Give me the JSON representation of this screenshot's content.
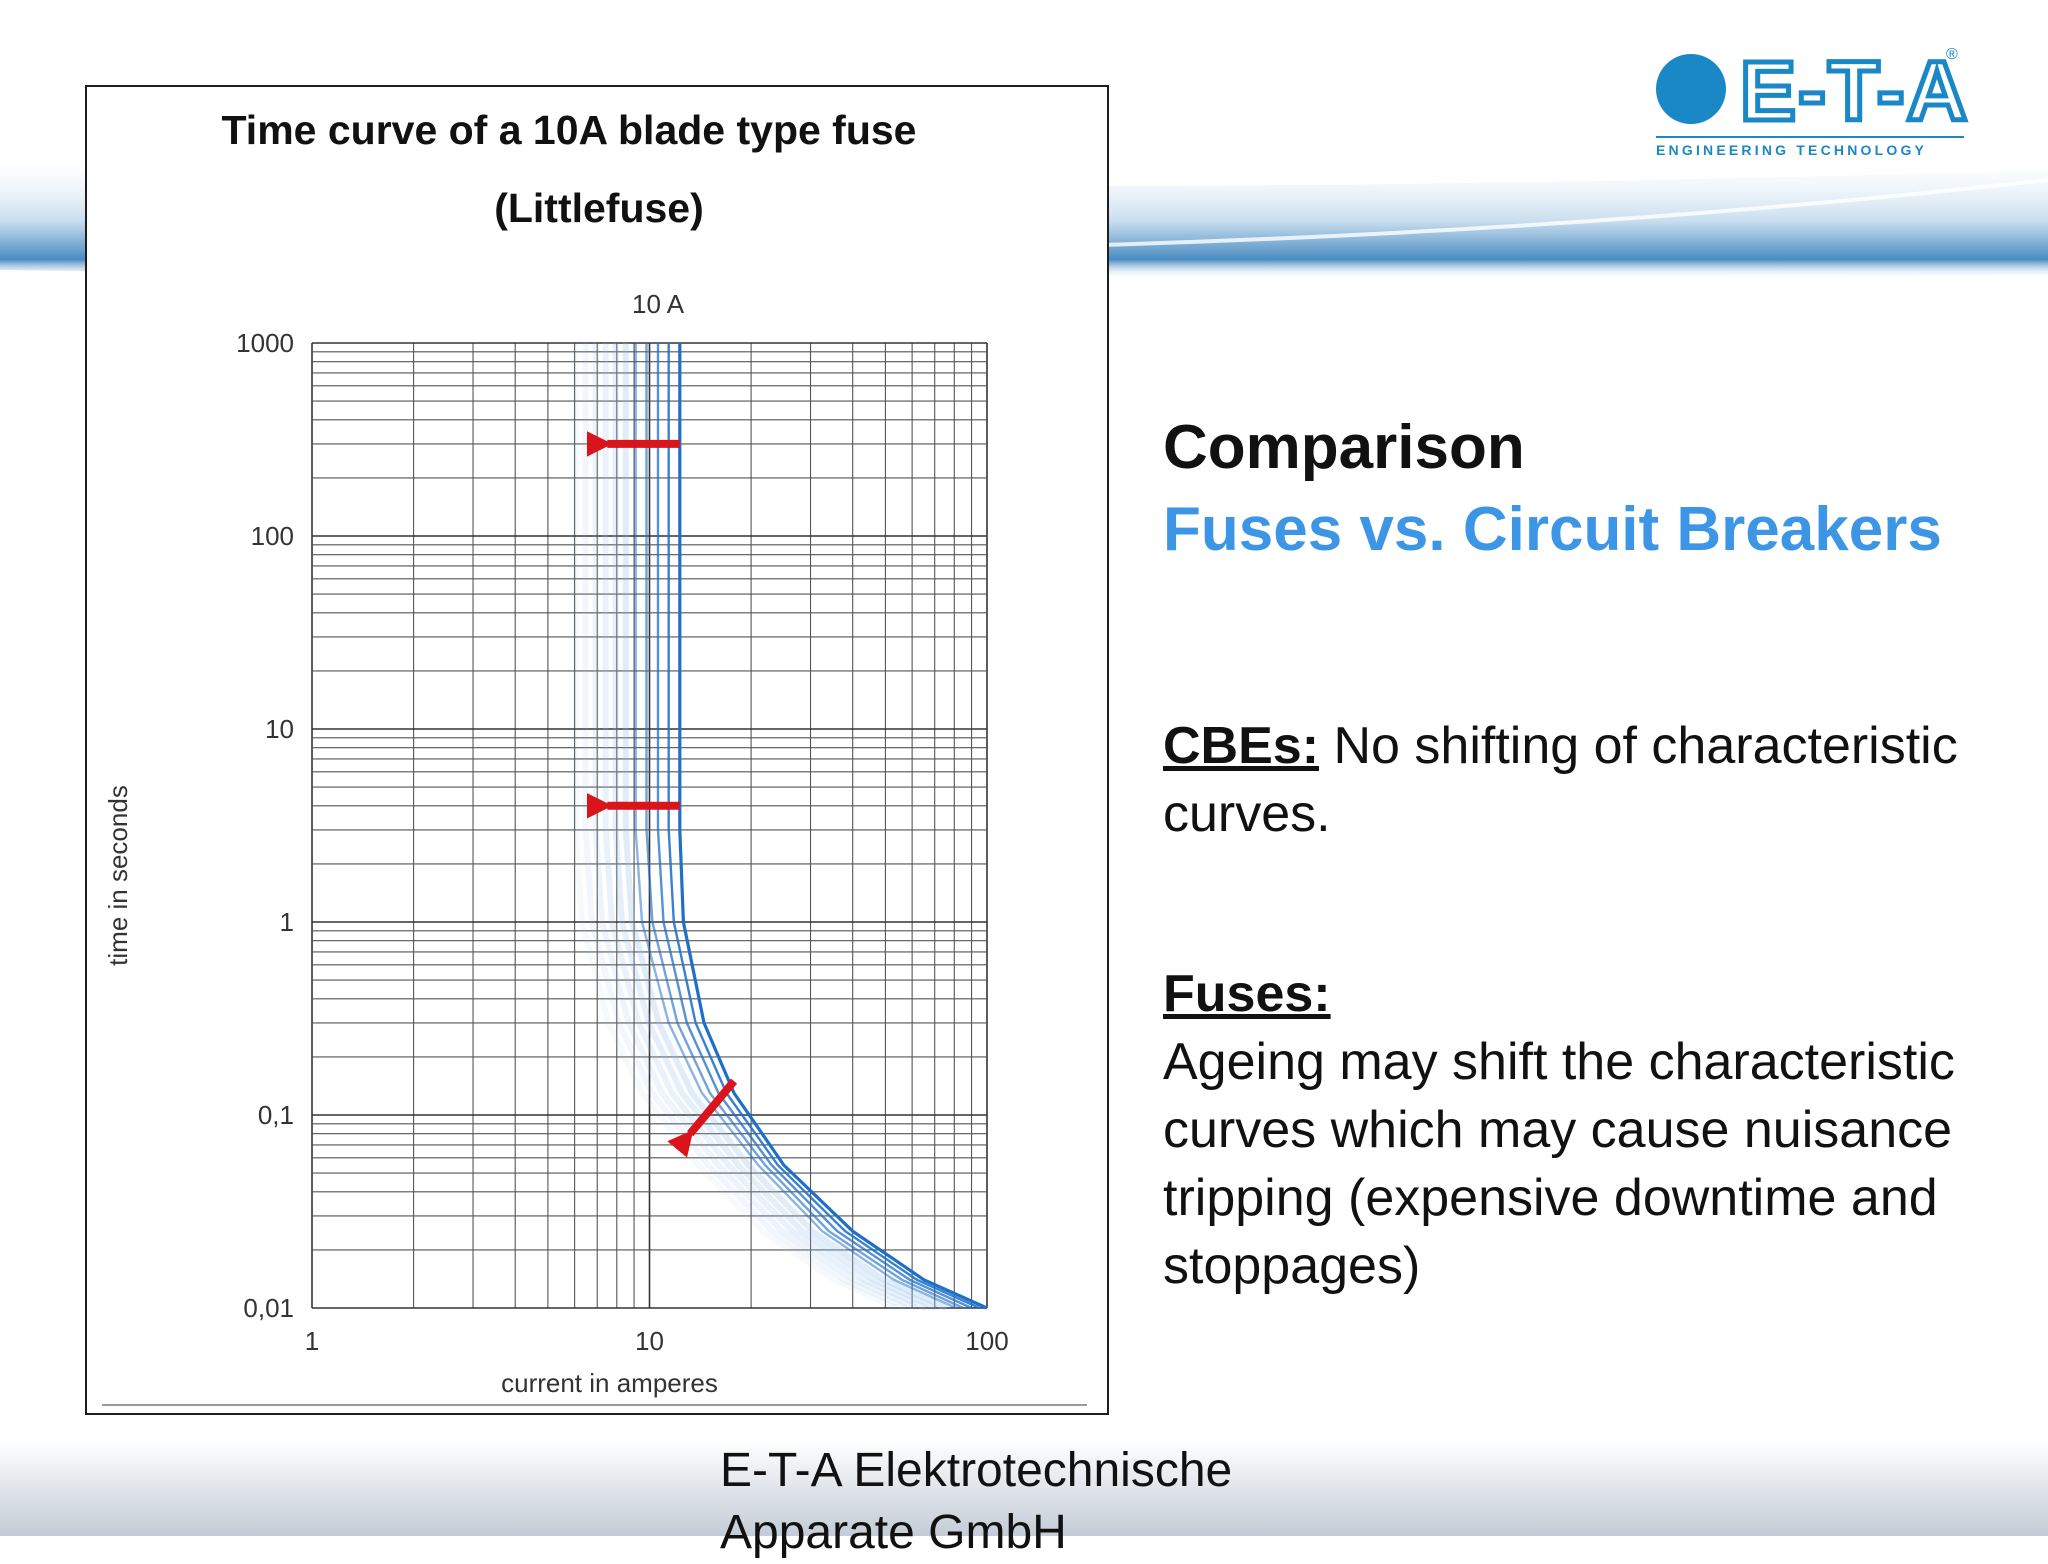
{
  "logo": {
    "name": "E-T-A",
    "tagline": "ENGINEERING TECHNOLOGY",
    "color": "#1a87c6"
  },
  "heading": {
    "line1": "Comparison",
    "line2": "Fuses vs. Circuit Breakers",
    "accent": "#3d95e6"
  },
  "cbes": {
    "lead": "CBEs:",
    "text": "No shifting of characteristic curves."
  },
  "fuses": {
    "lead": "Fuses:",
    "text": "Ageing may shift the characteristic curves which may cause nuisance tripping (expensive downtime and stoppages)"
  },
  "footer": "E-T-A Elektrotechnische Apparate GmbH",
  "chart_data": {
    "type": "line",
    "title": "Time curve of a 10A blade type fuse",
    "subtitle": "(Littlefuse)",
    "series_label": "10 A",
    "xlabel": "current in amperes",
    "ylabel": "time in seconds",
    "x_scale": "log",
    "y_scale": "log",
    "xlim": [
      1,
      100
    ],
    "ylim": [
      0.01,
      1000
    ],
    "x_ticks": [
      {
        "v": 1,
        "label": "1"
      },
      {
        "v": 10,
        "label": "10"
      },
      {
        "v": 100,
        "label": "100"
      }
    ],
    "y_ticks": [
      {
        "v": 1000,
        "label": "1000"
      },
      {
        "v": 100,
        "label": "100"
      },
      {
        "v": 10,
        "label": "10"
      },
      {
        "v": 1,
        "label": "1"
      },
      {
        "v": 0.1,
        "label": "0,1"
      },
      {
        "v": 0.01,
        "label": "0,01"
      }
    ],
    "grid": true,
    "curve_color": "#1f6fc8",
    "arrow_color": "#d9141b",
    "series": [
      {
        "points": [
          [
            12.3,
            1000
          ],
          [
            12.3,
            3
          ],
          [
            12.6,
            1
          ],
          [
            14.5,
            0.3
          ],
          [
            17.8,
            0.13
          ],
          [
            25,
            0.055
          ],
          [
            40,
            0.025
          ],
          [
            65,
            0.014
          ],
          [
            100,
            0.01
          ]
        ]
      },
      {
        "points": [
          [
            11.4,
            1000
          ],
          [
            11.4,
            3
          ],
          [
            11.8,
            1
          ],
          [
            13.7,
            0.3
          ],
          [
            16.9,
            0.13
          ],
          [
            24,
            0.055
          ],
          [
            38,
            0.025
          ],
          [
            62,
            0.014
          ],
          [
            95,
            0.01
          ]
        ]
      },
      {
        "points": [
          [
            10.6,
            1000
          ],
          [
            10.6,
            3
          ],
          [
            11,
            1
          ],
          [
            12.9,
            0.3
          ],
          [
            16,
            0.13
          ],
          [
            23,
            0.055
          ],
          [
            36,
            0.025
          ],
          [
            59,
            0.014
          ],
          [
            90,
            0.01
          ]
        ]
      },
      {
        "points": [
          [
            9.8,
            1000
          ],
          [
            9.8,
            3
          ],
          [
            10.2,
            1
          ],
          [
            12.1,
            0.3
          ],
          [
            15.1,
            0.13
          ],
          [
            22,
            0.055
          ],
          [
            34,
            0.025
          ],
          [
            56,
            0.014
          ],
          [
            85,
            0.01
          ]
        ]
      },
      {
        "points": [
          [
            9.1,
            1000
          ],
          [
            9.1,
            3
          ],
          [
            9.5,
            1
          ],
          [
            11.4,
            0.3
          ],
          [
            14.3,
            0.13
          ],
          [
            21,
            0.055
          ],
          [
            32.5,
            0.025
          ],
          [
            53,
            0.014
          ],
          [
            81,
            0.01
          ]
        ]
      }
    ],
    "arrows": [
      {
        "from": [
          12.3,
          300
        ],
        "to": [
          7.5,
          300
        ]
      },
      {
        "from": [
          12.3,
          4
        ],
        "to": [
          7.5,
          4
        ]
      },
      {
        "from": [
          17.8,
          0.15
        ],
        "to": [
          13.2,
          0.08
        ]
      }
    ]
  }
}
